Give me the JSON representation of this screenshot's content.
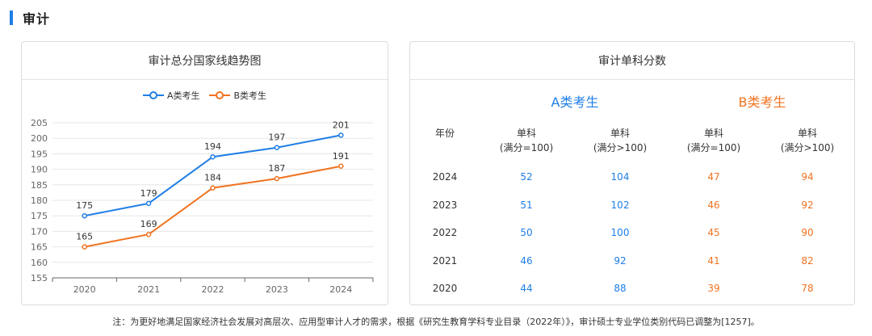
{
  "section": {
    "title": "审计"
  },
  "left_card": {
    "title": "审计总分国家线趋势图"
  },
  "right_card": {
    "title": "审计单科分数",
    "group_a": "A类考生",
    "group_b": "B类考生",
    "headers": [
      "年份",
      "单科\n(满分=100)",
      "单科\n(满分>100)",
      "单科\n(满分=100)",
      "单科\n(满分>100)"
    ],
    "rows": [
      {
        "year": "2024",
        "a1": "52",
        "a2": "104",
        "b1": "47",
        "b2": "94"
      },
      {
        "year": "2023",
        "a1": "51",
        "a2": "102",
        "b1": "46",
        "b2": "92"
      },
      {
        "year": "2022",
        "a1": "50",
        "a2": "100",
        "b1": "45",
        "b2": "90"
      },
      {
        "year": "2021",
        "a1": "46",
        "a2": "92",
        "b1": "41",
        "b2": "82"
      },
      {
        "year": "2020",
        "a1": "44",
        "a2": "88",
        "b1": "39",
        "b2": "78"
      }
    ],
    "colors": {
      "a": "#1f7ee6",
      "b": "#f07320"
    }
  },
  "chart_data": {
    "type": "line",
    "title": "审计总分国家线趋势图",
    "x": [
      "2020",
      "2021",
      "2022",
      "2023",
      "2024"
    ],
    "series": [
      {
        "name": "A类考生",
        "values": [
          175,
          179,
          194,
          197,
          201
        ],
        "color": "#1f7ee6"
      },
      {
        "name": "B类考生",
        "values": [
          165,
          169,
          184,
          187,
          191
        ],
        "color": "#f07320"
      }
    ],
    "ylim": [
      155,
      205
    ],
    "yticks": [
      155,
      160,
      165,
      170,
      175,
      180,
      185,
      190,
      195,
      200,
      205
    ],
    "legend": "top-center",
    "grid": true
  },
  "footnote": "注：为更好地满足国家经济社会发展对高层次、应用型审计人才的需求，根据《研究生教育学科专业目录（2022年）》，审计硕士专业学位类别代码已调整为[1257]。"
}
